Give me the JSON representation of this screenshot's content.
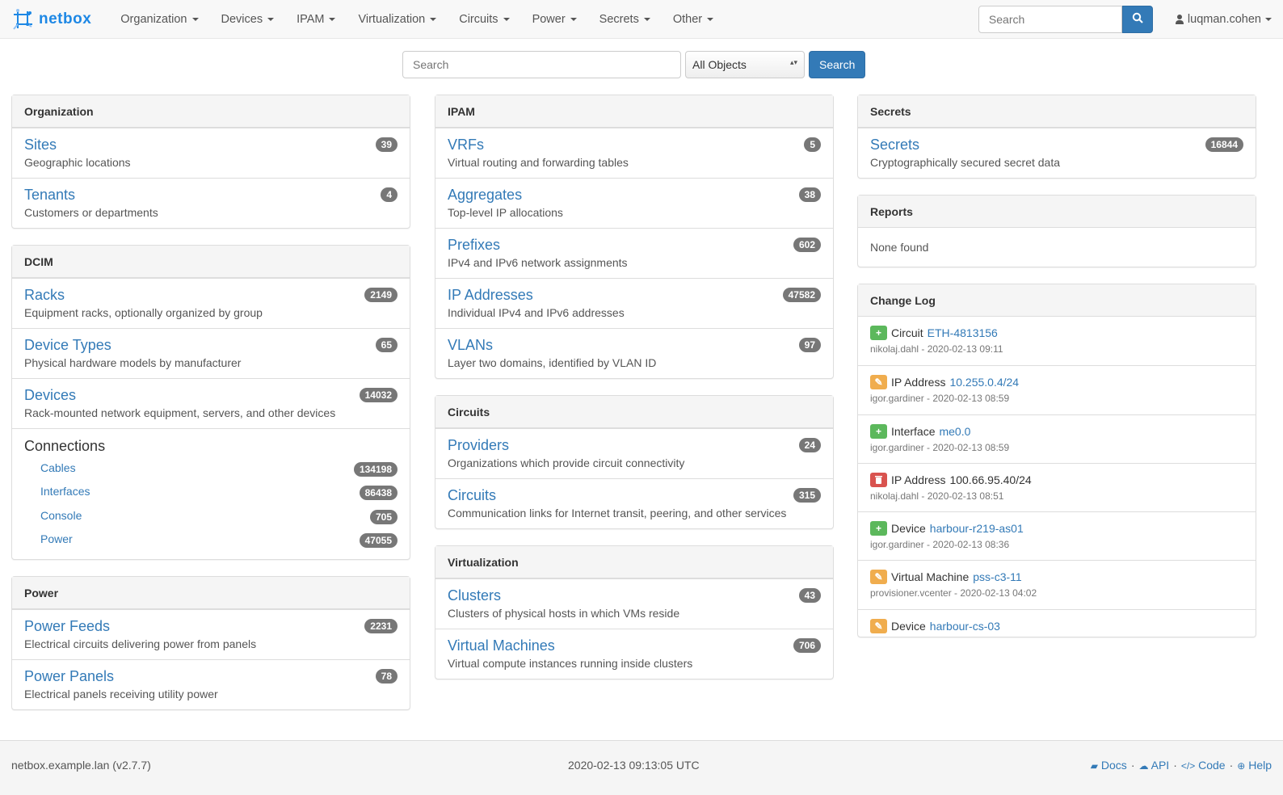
{
  "navbar": {
    "brand": "netbox",
    "menus": [
      "Organization",
      "Devices",
      "IPAM",
      "Virtualization",
      "Circuits",
      "Power",
      "Secrets",
      "Other"
    ],
    "search_placeholder": "Search",
    "user": "luqman.cohen"
  },
  "search": {
    "placeholder": "Search",
    "scope": "All Objects",
    "button": "Search"
  },
  "colors": {
    "link": "#337ab7",
    "badge": "#777777",
    "added": "#5cb85c",
    "updated": "#f0ad4e",
    "deleted": "#d9534f",
    "brand": "#1e88e5"
  },
  "columns": [
    [
      {
        "title": "Organization",
        "items": [
          {
            "title": "Sites",
            "desc": "Geographic locations",
            "count": "39"
          },
          {
            "title": "Tenants",
            "desc": "Customers or departments",
            "count": "4"
          }
        ]
      },
      {
        "title": "DCIM",
        "items": [
          {
            "title": "Racks",
            "desc": "Equipment racks, optionally organized by group",
            "count": "2149"
          },
          {
            "title": "Device Types",
            "desc": "Physical hardware models by manufacturer",
            "count": "65"
          },
          {
            "title": "Devices",
            "desc": "Rack-mounted network equipment, servers, and other devices",
            "count": "14032"
          }
        ],
        "connections": {
          "title": "Connections",
          "items": [
            {
              "label": "Cables",
              "count": "134198"
            },
            {
              "label": "Interfaces",
              "count": "86438"
            },
            {
              "label": "Console",
              "count": "705"
            },
            {
              "label": "Power",
              "count": "47055"
            }
          ]
        }
      },
      {
        "title": "Power",
        "items": [
          {
            "title": "Power Feeds",
            "desc": "Electrical circuits delivering power from panels",
            "count": "2231"
          },
          {
            "title": "Power Panels",
            "desc": "Electrical panels receiving utility power",
            "count": "78"
          }
        ]
      }
    ],
    [
      {
        "title": "IPAM",
        "items": [
          {
            "title": "VRFs",
            "desc": "Virtual routing and forwarding tables",
            "count": "5"
          },
          {
            "title": "Aggregates",
            "desc": "Top-level IP allocations",
            "count": "38"
          },
          {
            "title": "Prefixes",
            "desc": "IPv4 and IPv6 network assignments",
            "count": "602"
          },
          {
            "title": "IP Addresses",
            "desc": "Individual IPv4 and IPv6 addresses",
            "count": "47582"
          },
          {
            "title": "VLANs",
            "desc": "Layer two domains, identified by VLAN ID",
            "count": "97"
          }
        ]
      },
      {
        "title": "Circuits",
        "items": [
          {
            "title": "Providers",
            "desc": "Organizations which provide circuit connectivity",
            "count": "24"
          },
          {
            "title": "Circuits",
            "desc": "Communication links for Internet transit, peering, and other services",
            "count": "315"
          }
        ]
      },
      {
        "title": "Virtualization",
        "items": [
          {
            "title": "Clusters",
            "desc": "Clusters of physical hosts in which VMs reside",
            "count": "43"
          },
          {
            "title": "Virtual Machines",
            "desc": "Virtual compute instances running inside clusters",
            "count": "706"
          }
        ]
      }
    ],
    [
      {
        "title": "Secrets",
        "items": [
          {
            "title": "Secrets",
            "desc": "Cryptographically secured secret data",
            "count": "16844"
          }
        ]
      },
      {
        "title": "Reports",
        "none": "None found"
      }
    ]
  ],
  "changelog": {
    "title": "Change Log",
    "entries": [
      {
        "action": "added",
        "type": "Circuit",
        "object": "ETH-4813156",
        "meta": "nikolaj.dahl - 2020-02-13 09:11"
      },
      {
        "action": "updated",
        "type": "IP Address",
        "object": "10.255.0.4/24",
        "meta": "igor.gardiner - 2020-02-13 08:59"
      },
      {
        "action": "added",
        "type": "Interface",
        "object": "me0.0",
        "meta": "igor.gardiner - 2020-02-13 08:59"
      },
      {
        "action": "deleted",
        "type": "IP Address",
        "object": "100.66.95.40/24",
        "meta": "nikolaj.dahl - 2020-02-13 08:51"
      },
      {
        "action": "added",
        "type": "Device",
        "object": "harbour-r219-as01",
        "meta": "igor.gardiner - 2020-02-13 08:36"
      },
      {
        "action": "updated",
        "type": "Virtual Machine",
        "object": "pss-c3-11",
        "meta": "provisioner.vcenter - 2020-02-13 04:02"
      },
      {
        "action": "updated",
        "type": "Device",
        "object": "harbour-cs-03",
        "meta": ""
      }
    ]
  },
  "footer": {
    "host": "netbox.example.lan (v2.7.7)",
    "time": "2020-02-13 09:13:05 UTC",
    "links": [
      "Docs",
      "API",
      "Code",
      "Help"
    ],
    "sep": "·"
  }
}
